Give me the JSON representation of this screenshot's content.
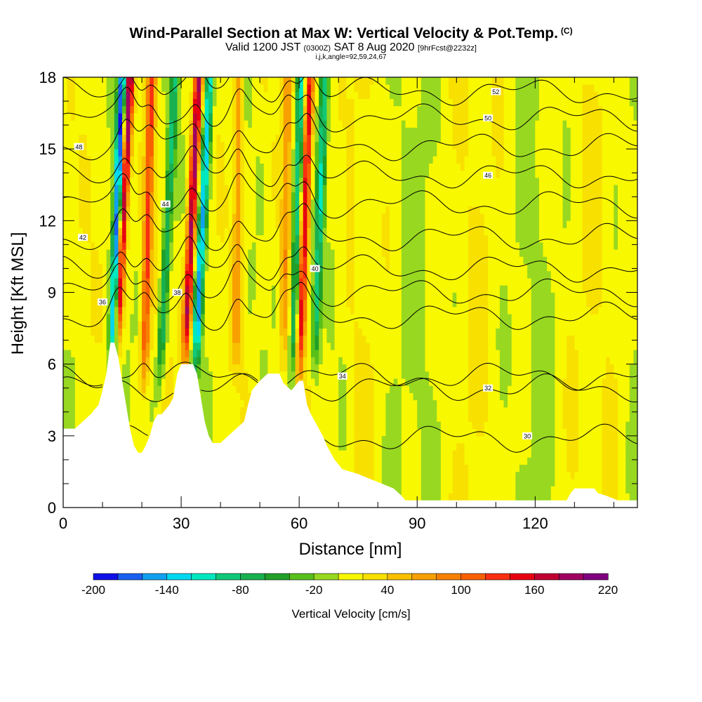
{
  "chart_data": {
    "type": "heatmap",
    "title": "Wind-Parallel Section at Max W: Vertical Velocity & Pot.Temp.",
    "title_note": "(C)",
    "subtitle": {
      "valid": "Valid 1200 JST",
      "utc": "(0300Z)",
      "date": "SAT 8 Aug 2020",
      "forecast": "[9hrFcst@2232z]"
    },
    "indices": "i,j,k,angle=92,59,24,67",
    "xlabel": "Distance [nm]",
    "ylabel": "Height [Kft MSL]",
    "xlim": [
      0,
      146
    ],
    "ylim": [
      0,
      18
    ],
    "xticks": [
      "0",
      "30",
      "60",
      "90",
      "120"
    ],
    "xtick_values": [
      0,
      30,
      60,
      90,
      120
    ],
    "yticks": [
      "0",
      "3",
      "6",
      "9",
      "12",
      "15",
      "18"
    ],
    "ytick_values": [
      0,
      3,
      6,
      9,
      12,
      15,
      18
    ],
    "colorbar": {
      "title": "Vertical Velocity [cm/s]",
      "levels": [
        -200,
        -180,
        -160,
        -140,
        -120,
        -100,
        -80,
        -60,
        -40,
        -20,
        0,
        20,
        40,
        60,
        80,
        100,
        120,
        140,
        160,
        180,
        200,
        220
      ],
      "labels": [
        "-200",
        "-140",
        "-80",
        "-20",
        "40",
        "100",
        "160",
        "220"
      ],
      "label_values": [
        -200,
        -140,
        -80,
        -20,
        40,
        100,
        160,
        220
      ],
      "colors": [
        "#1010e8",
        "#1860f0",
        "#10a0f0",
        "#00d8f0",
        "#00e8c0",
        "#10c878",
        "#18b050",
        "#20a028",
        "#58c018",
        "#98d820",
        "#f8f800",
        "#f8e000",
        "#f8c000",
        "#f8a000",
        "#f88000",
        "#f86000",
        "#f83010",
        "#e80010",
        "#c00030",
        "#a00060",
        "#800080"
      ]
    },
    "terrain": [
      [
        0,
        3.3
      ],
      [
        3,
        3.3
      ],
      [
        5,
        3.6
      ],
      [
        7,
        3.9
      ],
      [
        9,
        4.3
      ],
      [
        10,
        4.9
      ],
      [
        11,
        5.6
      ],
      [
        12,
        6.9
      ],
      [
        13,
        6.9
      ],
      [
        14,
        6.3
      ],
      [
        15,
        5.3
      ],
      [
        16,
        4.3
      ],
      [
        17,
        3.3
      ],
      [
        18,
        2.6
      ],
      [
        19,
        2.3
      ],
      [
        20,
        2.3
      ],
      [
        21,
        2.6
      ],
      [
        22,
        3.0
      ],
      [
        23,
        3.6
      ],
      [
        24,
        3.9
      ],
      [
        25,
        3.9
      ],
      [
        27,
        4.3
      ],
      [
        28,
        4.6
      ],
      [
        29,
        5.6
      ],
      [
        30,
        6.0
      ],
      [
        33,
        6.0
      ],
      [
        34,
        5.6
      ],
      [
        35,
        4.6
      ],
      [
        36,
        3.6
      ],
      [
        37,
        3.0
      ],
      [
        38,
        2.7
      ],
      [
        40,
        2.7
      ],
      [
        42,
        3.0
      ],
      [
        44,
        3.3
      ],
      [
        46,
        3.6
      ],
      [
        47,
        4.3
      ],
      [
        48,
        4.9
      ],
      [
        50,
        5.3
      ],
      [
        52,
        5.6
      ],
      [
        55,
        5.6
      ],
      [
        56,
        5.2
      ],
      [
        58,
        4.9
      ],
      [
        60,
        5.3
      ],
      [
        61,
        5.3
      ],
      [
        62,
        4.3
      ],
      [
        63,
        3.9
      ],
      [
        64,
        3.6
      ],
      [
        65,
        3.3
      ],
      [
        66,
        3.0
      ],
      [
        67,
        2.6
      ],
      [
        68,
        2.3
      ],
      [
        69,
        2.0
      ],
      [
        70,
        1.8
      ],
      [
        71,
        1.6
      ],
      [
        73,
        1.5
      ],
      [
        75,
        1.4
      ],
      [
        78,
        1.2
      ],
      [
        81,
        1.0
      ],
      [
        84,
        0.8
      ],
      [
        86,
        0.5
      ],
      [
        87,
        0.3
      ],
      [
        128,
        0.3
      ],
      [
        129,
        0.6
      ],
      [
        130,
        0.8
      ],
      [
        135,
        0.8
      ],
      [
        136,
        0.6
      ],
      [
        138,
        0.5
      ],
      [
        141,
        0.3
      ],
      [
        146,
        0.3
      ]
    ],
    "updraft_cores": [
      {
        "x": 13.5,
        "z_base": 6.5,
        "lean": 0.3,
        "max": 200
      },
      {
        "x": 20.5,
        "z_base": 5.0,
        "lean": 0.15,
        "max": 110
      },
      {
        "x": 31,
        "z_base": 6.0,
        "lean": 0.28,
        "max": 180
      },
      {
        "x": 44,
        "z_base": 5.5,
        "lean": 0.05,
        "max": 60
      },
      {
        "x": 60,
        "z_base": 5.5,
        "lean": 0.22,
        "max": 150
      },
      {
        "x": 56,
        "z_base": 6.0,
        "lean": 0.1,
        "max": 60
      }
    ],
    "downdraft_cores": [
      {
        "x": 12.5,
        "z_base": 5.5,
        "lean": 0.2,
        "min": -200
      },
      {
        "x": 24.5,
        "z_base": 5.0,
        "lean": 0.3,
        "min": -90
      },
      {
        "x": 33.5,
        "z_base": 5.5,
        "lean": 0.3,
        "min": -150
      },
      {
        "x": 58.5,
        "z_base": 5.5,
        "lean": 0.15,
        "min": -110
      },
      {
        "x": 64,
        "z_base": 6.0,
        "lean": 0.2,
        "min": -100
      }
    ],
    "isentropes": [
      {
        "theta": 30,
        "label": "30",
        "base": 2.9,
        "label_at": [
          118,
          3.0
        ]
      },
      {
        "theta": 32,
        "label": "32",
        "base": 5.0,
        "label_at": [
          108,
          5.0
        ]
      },
      {
        "theta": 34,
        "label": "34",
        "base": 5.5,
        "label_at": [
          71,
          5.5
        ]
      },
      {
        "theta": 36,
        "label": "36",
        "base": 8.0,
        "label_at": [
          10,
          8.6
        ]
      },
      {
        "theta": 38,
        "label": "38",
        "base": 9.0,
        "label_at": [
          29,
          9.0
        ]
      },
      {
        "theta": 40,
        "label": "40",
        "base": 10.0,
        "label_at": [
          64,
          10.0
        ]
      },
      {
        "theta": 42,
        "label": "42",
        "base": 11.3,
        "label_at": [
          5,
          11.3
        ]
      },
      {
        "theta": 44,
        "label": "44",
        "base": 12.7,
        "label_at": [
          26,
          12.7
        ]
      },
      {
        "theta": 46,
        "label": "46",
        "base": 13.9,
        "label_at": [
          108,
          13.9
        ]
      },
      {
        "theta": 48,
        "label": "48",
        "base": 15.1,
        "label_at": [
          4,
          15.1
        ]
      },
      {
        "theta": 50,
        "label": "50",
        "base": 16.3,
        "label_at": [
          108,
          16.3
        ]
      },
      {
        "theta": 52,
        "label": "52",
        "base": 17.4,
        "label_at": [
          110,
          17.4
        ]
      }
    ]
  }
}
